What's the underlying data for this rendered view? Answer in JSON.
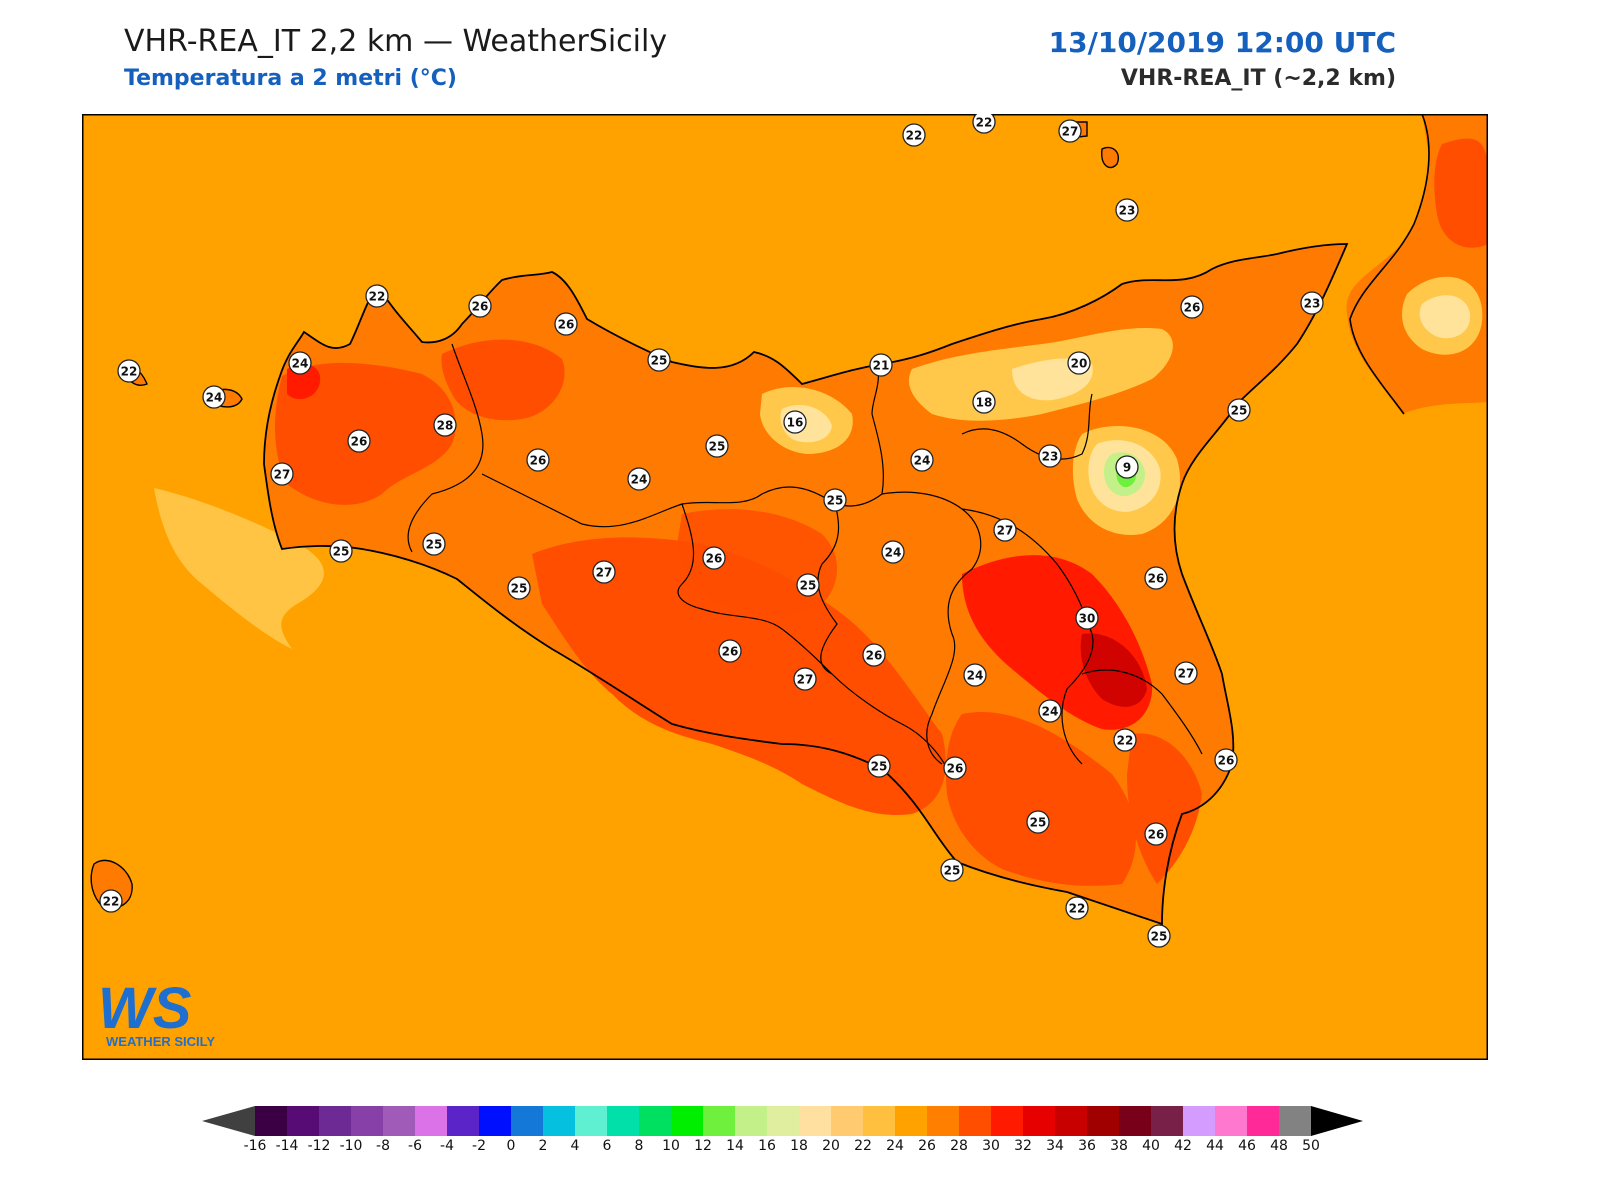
{
  "header": {
    "title": "VHR-REA_IT 2,2 km — WeatherSicily",
    "subtitle": "Temperatura a 2 metri (°C)",
    "datetime": "13/10/2019 12:00 UTC",
    "model": "VHR-REA_IT (~2,2 km)"
  },
  "logo": {
    "mark": "WS",
    "name": "WEATHER SICILY"
  },
  "colors": {
    "sea": "#ffa200",
    "land_base": "#ff7a00",
    "warm": "#ff4e00",
    "hot": "#ff1a00",
    "very_hot": "#e60000",
    "cool": "#ffc84a",
    "cooler": "#ffe39a",
    "green": "#7cf84a",
    "coast": "#000000"
  },
  "stations": [
    {
      "v": "22"
    },
    {
      "v": "22"
    },
    {
      "v": "27"
    },
    {
      "v": "23"
    },
    {
      "v": "22"
    },
    {
      "v": "26"
    },
    {
      "v": "26"
    },
    {
      "v": "26"
    },
    {
      "v": "23"
    },
    {
      "v": "22"
    },
    {
      "v": "24"
    },
    {
      "v": "24"
    },
    {
      "v": "25"
    },
    {
      "v": "21"
    },
    {
      "v": "20"
    },
    {
      "v": "18"
    },
    {
      "v": "16"
    },
    {
      "v": "25"
    },
    {
      "v": "26"
    },
    {
      "v": "28"
    },
    {
      "v": "26"
    },
    {
      "v": "25"
    },
    {
      "v": "27"
    },
    {
      "v": "24"
    },
    {
      "v": "24"
    },
    {
      "v": "23"
    },
    {
      "v": "9"
    },
    {
      "v": "25"
    },
    {
      "v": "27"
    },
    {
      "v": "24"
    },
    {
      "v": "26"
    },
    {
      "v": "25"
    },
    {
      "v": "25"
    },
    {
      "v": "25"
    },
    {
      "v": "27"
    },
    {
      "v": "26"
    },
    {
      "v": "30"
    },
    {
      "v": "25"
    },
    {
      "v": "26"
    },
    {
      "v": "27"
    },
    {
      "v": "26"
    },
    {
      "v": "27"
    },
    {
      "v": "24"
    },
    {
      "v": "24"
    },
    {
      "v": "22"
    },
    {
      "v": "25"
    },
    {
      "v": "26"
    },
    {
      "v": "26"
    },
    {
      "v": "25"
    },
    {
      "v": "26"
    },
    {
      "v": "25"
    },
    {
      "v": "22"
    },
    {
      "v": "25"
    },
    {
      "v": "22"
    }
  ],
  "colorbar": {
    "ticks": [
      "-16",
      "-14",
      "-12",
      "-10",
      "-8",
      "-6",
      "-4",
      "-2",
      "0",
      "2",
      "4",
      "6",
      "8",
      "10",
      "12",
      "14",
      "16",
      "18",
      "20",
      "22",
      "24",
      "26",
      "28",
      "30",
      "32",
      "34",
      "36",
      "38",
      "40",
      "42",
      "44",
      "46",
      "48",
      "50"
    ],
    "bins": [
      "#3b0044",
      "#560c74",
      "#6e2a94",
      "#8640a8",
      "#a05ab8",
      "#db72e8",
      "#5b24c8",
      "#0010ff",
      "#1478d8",
      "#06c0e0",
      "#5ef0d0",
      "#00e0a8",
      "#00e060",
      "#00ee00",
      "#6ef03c",
      "#c4f08a",
      "#e0eea0",
      "#ffe0a0",
      "#ffca70",
      "#ffc040",
      "#ffa200",
      "#ff8000",
      "#ff4e00",
      "#ff1a00",
      "#e60000",
      "#c80000",
      "#a00000",
      "#780018",
      "#782048",
      "#d49cff",
      "#ff78d0",
      "#ff2a98",
      "#828282"
    ],
    "under": "#404040",
    "over": "#000000"
  }
}
